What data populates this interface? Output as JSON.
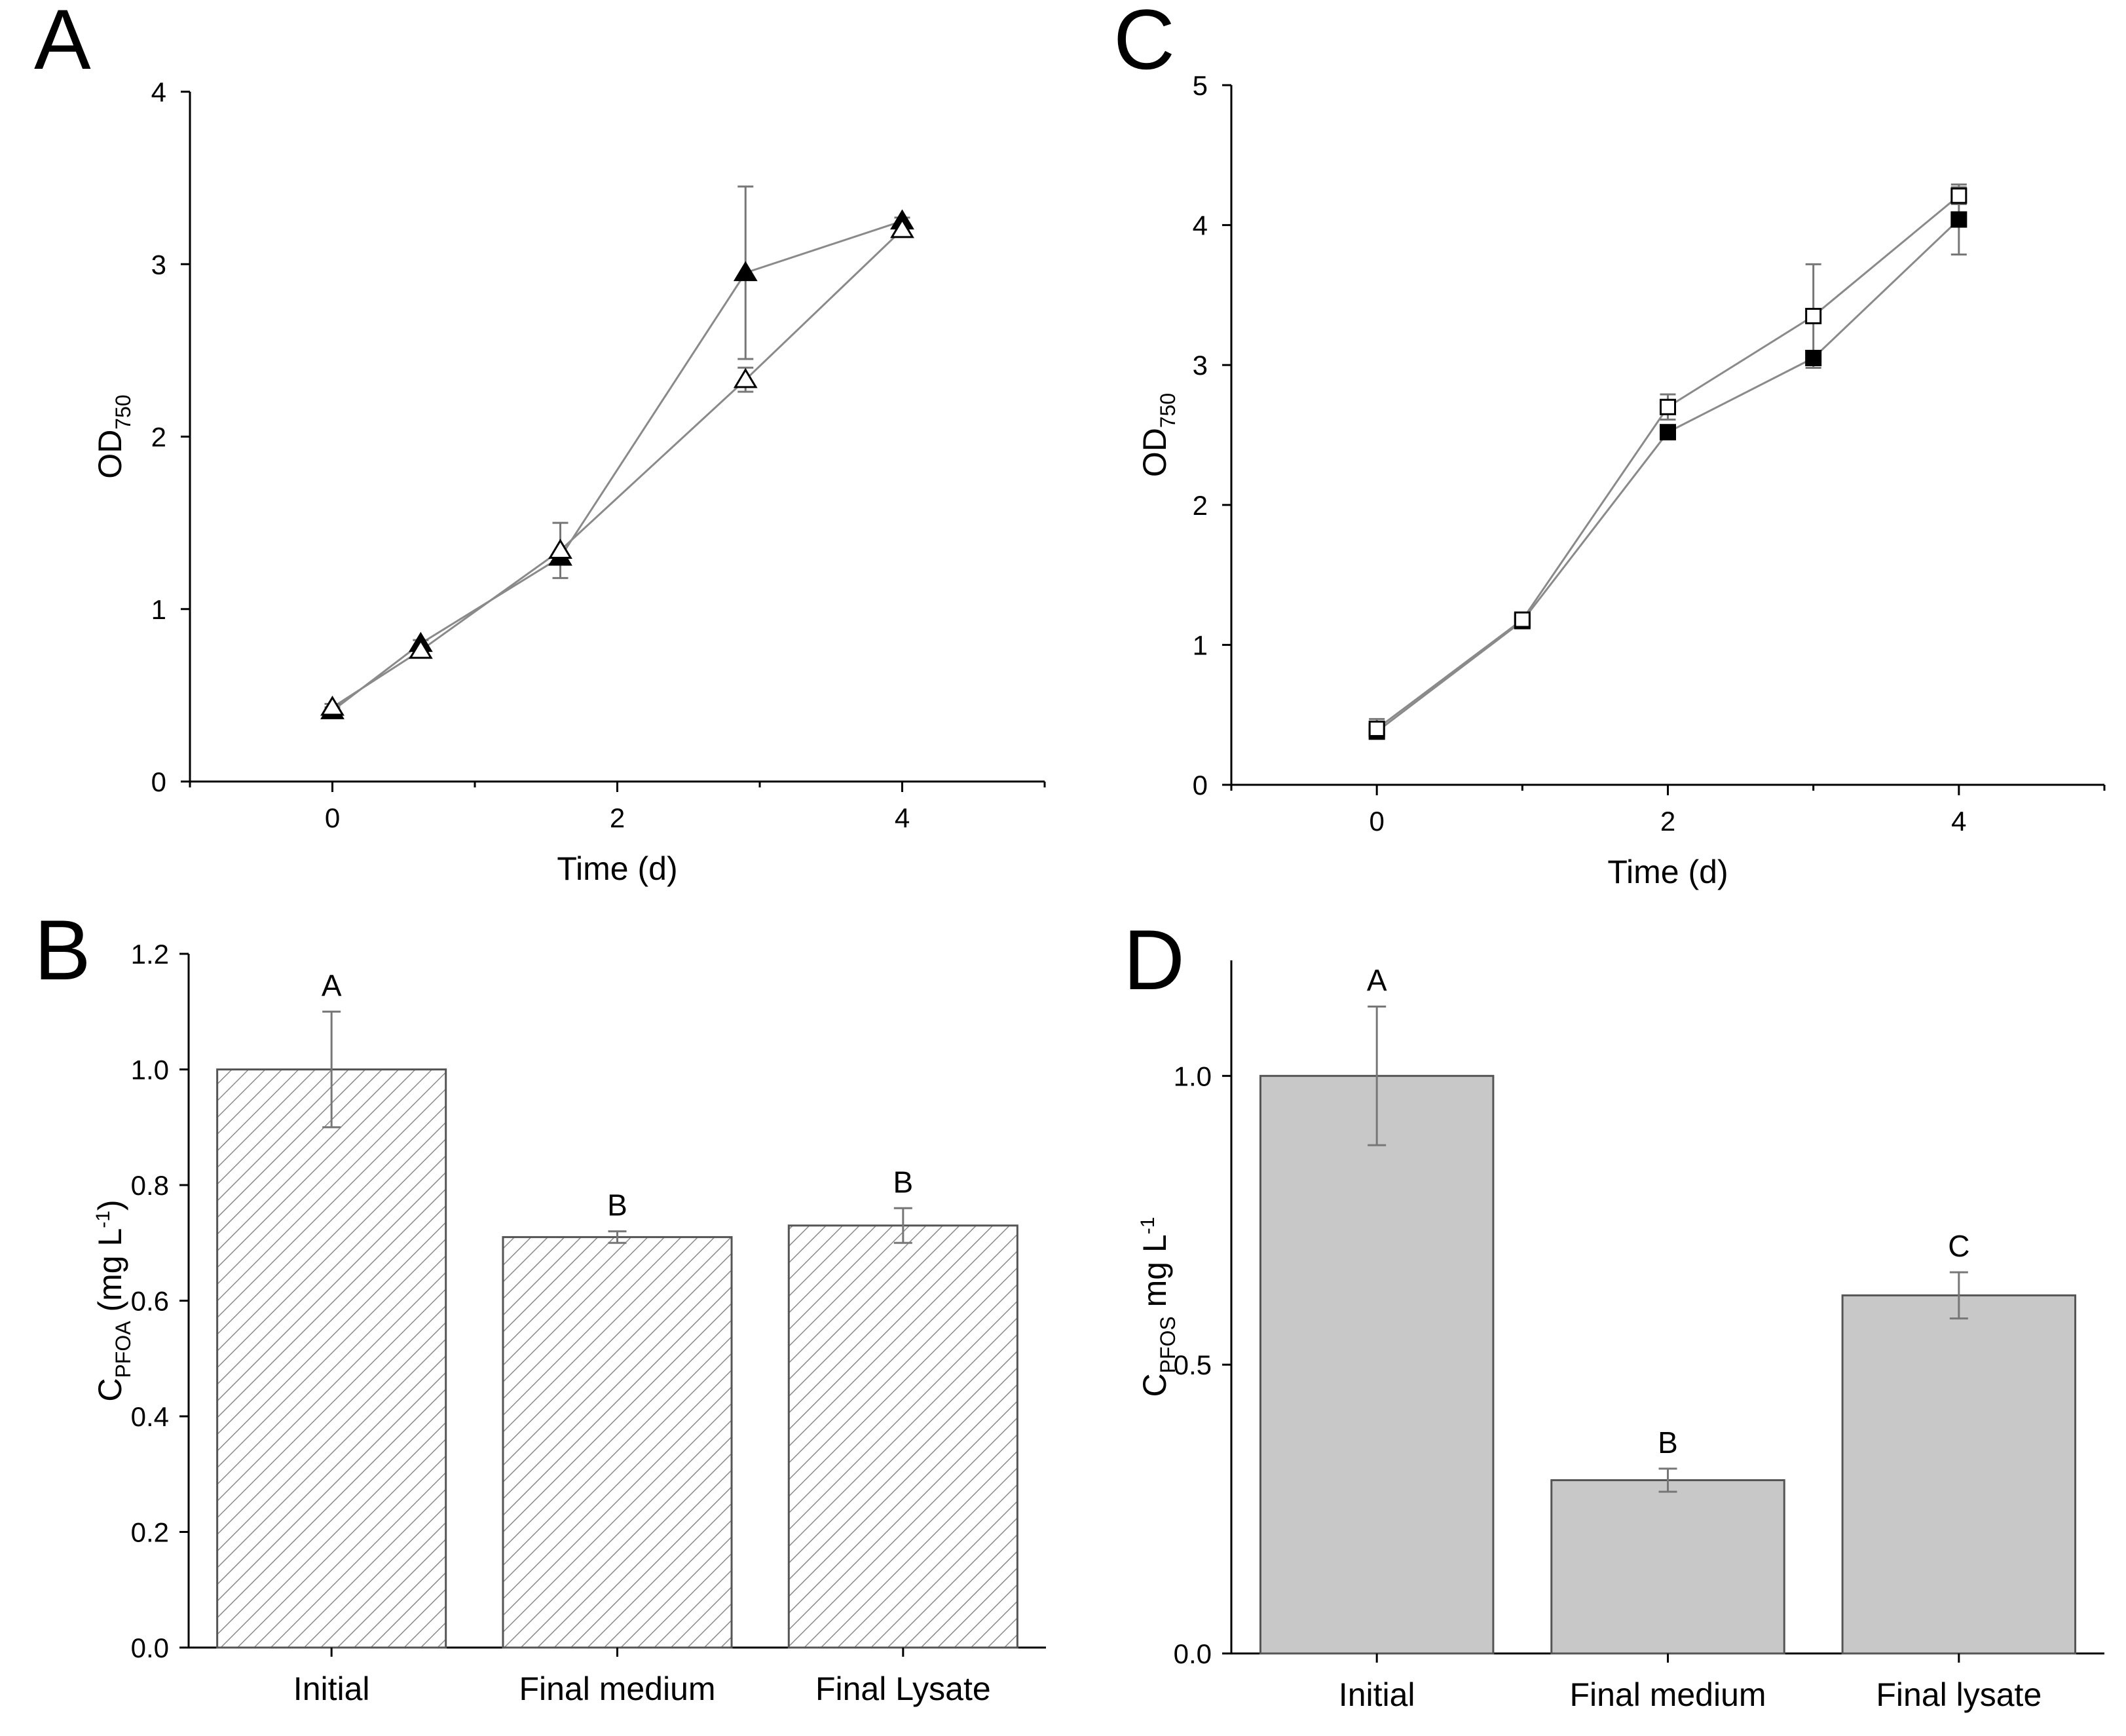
{
  "chart_data": [
    {
      "panel": "A",
      "type": "line",
      "xlabel": "Time (d)",
      "ylabel_main": "OD",
      "ylabel_sub": "750",
      "xlim": [
        -1,
        5
      ],
      "ylim": [
        0,
        4
      ],
      "xticks": [
        0,
        2,
        4
      ],
      "yticks": [
        0,
        1,
        2,
        3,
        4
      ],
      "series": [
        {
          "name": "filled-triangle",
          "marker": "triangle",
          "filled": true,
          "x": [
            0,
            0.62,
            1.6,
            2.9,
            4.0
          ],
          "y": [
            0.41,
            0.8,
            1.3,
            2.95,
            3.25
          ],
          "err": [
            0.02,
            0.02,
            0.02,
            0.5,
            0.02
          ]
        },
        {
          "name": "open-triangle",
          "marker": "triangle",
          "filled": false,
          "x": [
            0,
            0.62,
            1.6,
            2.9,
            4.0
          ],
          "y": [
            0.43,
            0.76,
            1.34,
            2.33,
            3.2
          ],
          "err": [
            0.02,
            0.02,
            0.16,
            0.07,
            0.02
          ]
        }
      ]
    },
    {
      "panel": "B",
      "type": "bar",
      "ylabel_main": "C",
      "ylabel_sub": "PFOA",
      "ylabel_rest": " (mg L",
      "ylabel_sup": "-1",
      "ylabel_end": ")",
      "categories": [
        "Initial",
        "Final medium",
        "Final Lysate"
      ],
      "values": [
        1.0,
        0.71,
        0.73
      ],
      "errors": [
        0.1,
        0.01,
        0.03
      ],
      "significance": [
        "A",
        "B",
        "B"
      ],
      "ylim": [
        0,
        1.2
      ],
      "yticks": [
        "0.0",
        "0.2",
        "0.4",
        "0.6",
        "0.8",
        "1.0",
        "1.2"
      ],
      "fill": "hatched"
    },
    {
      "panel": "C",
      "type": "line",
      "xlabel": "Time (d)",
      "ylabel_main": "OD",
      "ylabel_sub": "750",
      "xlim": [
        -1,
        5
      ],
      "ylim": [
        0,
        5
      ],
      "xticks": [
        0,
        2,
        4
      ],
      "yticks": [
        0,
        1,
        2,
        3,
        4,
        5
      ],
      "series": [
        {
          "name": "filled-square",
          "marker": "square",
          "filled": true,
          "x": [
            0,
            1,
            2,
            3,
            4
          ],
          "y": [
            0.38,
            1.17,
            2.52,
            3.05,
            4.04
          ],
          "err": [
            0.02,
            0.02,
            0.02,
            0.02,
            0.25
          ]
        },
        {
          "name": "open-square",
          "marker": "square",
          "filled": false,
          "x": [
            0,
            1,
            2,
            3,
            4
          ],
          "y": [
            0.4,
            1.18,
            2.7,
            3.35,
            4.21
          ],
          "err": [
            0.07,
            0.04,
            0.09,
            0.37,
            0.06
          ]
        }
      ]
    },
    {
      "panel": "D",
      "type": "bar",
      "ylabel_main": "C",
      "ylabel_sub": "PFOS",
      "ylabel_rest": " mg L",
      "ylabel_sup": "-1",
      "ylabel_end": "",
      "categories": [
        "Initial",
        "Final medium",
        "Final  lysate"
      ],
      "values": [
        1.0,
        0.3,
        0.62
      ],
      "errors": [
        0.12,
        0.02,
        0.04
      ],
      "significance": [
        "A",
        "B",
        "C"
      ],
      "ylim": [
        0,
        1.2
      ],
      "yticks": [
        "0.0",
        "0.5",
        "1.0"
      ],
      "fill": "#c8c8c8"
    }
  ]
}
